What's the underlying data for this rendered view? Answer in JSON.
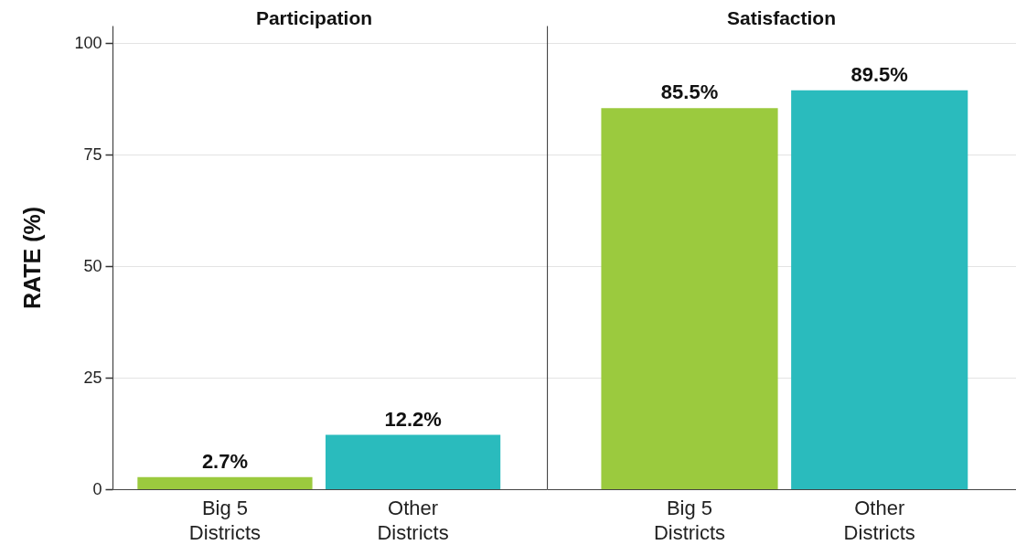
{
  "chart_data": [
    {
      "type": "bar",
      "title": "Participation",
      "ylabel": "RATE (%)",
      "categories": [
        "Big 5 Districts",
        "Other Districts"
      ],
      "values": [
        2.7,
        12.2
      ],
      "colors": [
        "#9bca3e",
        "#2abbbd"
      ],
      "value_labels": [
        "2.7%",
        "12.2%"
      ],
      "ylim": [
        0,
        104
      ],
      "yticks": [
        0,
        25,
        50,
        75,
        100
      ],
      "grid": "y"
    },
    {
      "type": "bar",
      "title": "Satisfaction",
      "categories": [
        "Big 5 Districts",
        "Other Districts"
      ],
      "values": [
        85.5,
        89.5
      ],
      "colors": [
        "#9bca3e",
        "#2abbbd"
      ],
      "value_labels": [
        "85.5%",
        "89.5%"
      ],
      "ylim": [
        0,
        104
      ],
      "yticks": [
        0,
        25,
        50,
        75,
        100
      ],
      "grid": "y",
      "tick_labels": "x"
    }
  ]
}
